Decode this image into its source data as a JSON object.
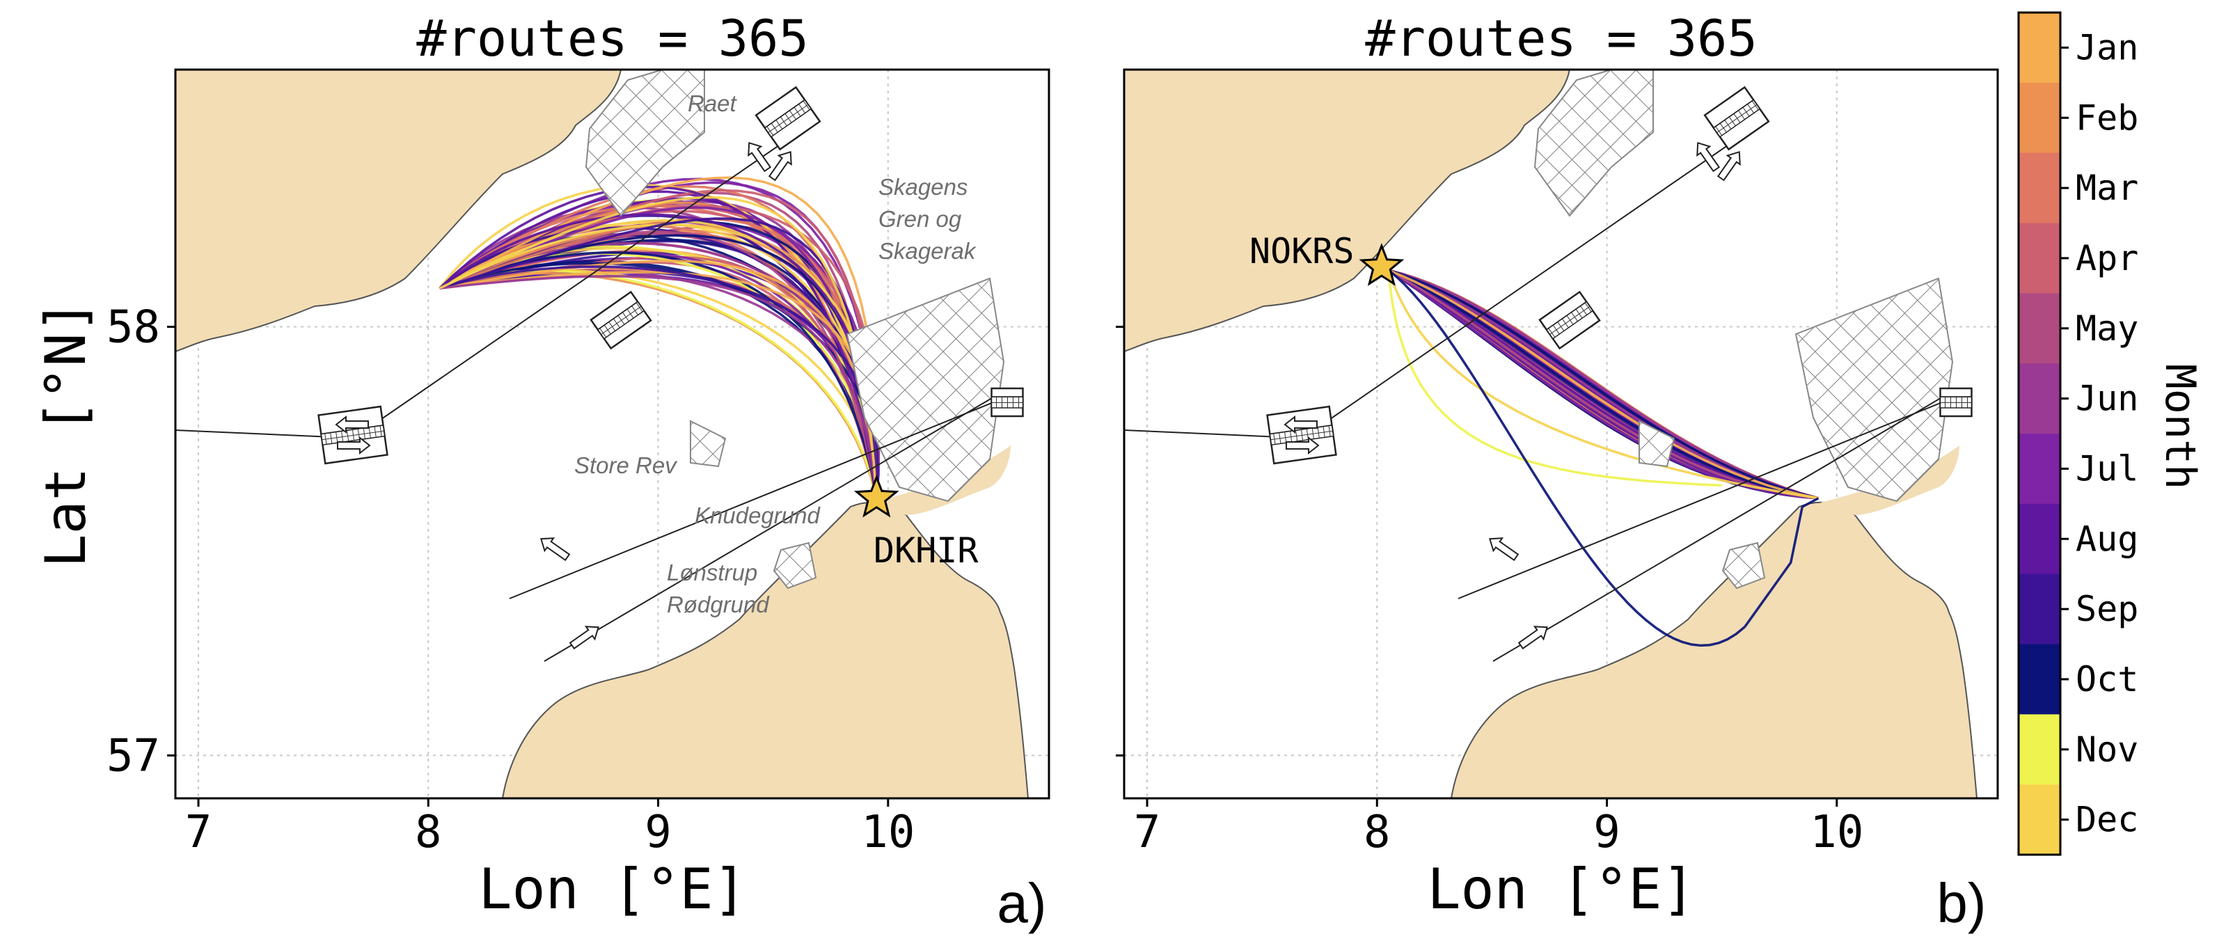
{
  "panels": [
    {
      "id": "a",
      "title": "#routes = 365",
      "panel_label": "a)",
      "port": "DKHIR",
      "port_lonlat": [
        9.95,
        57.6
      ],
      "place_labels": [
        "Raet",
        "Skagens",
        "Gren og",
        "Skagerak",
        "Store Rev",
        "Knudegrund",
        "Lønstrup",
        "Rødgrund"
      ]
    },
    {
      "id": "b",
      "title": "#routes = 365",
      "panel_label": "b)",
      "port": "NOKRS",
      "port_lonlat": [
        8.02,
        58.14
      ],
      "place_labels": []
    }
  ],
  "axes": {
    "xlabel": "Lon [°E]",
    "ylabel": "Lat [°N]",
    "xticks": [
      "7",
      "8",
      "9",
      "10"
    ],
    "yticks": [
      "58",
      "57"
    ],
    "xlim": [
      6.9,
      10.7
    ],
    "ylim": [
      56.9,
      58.6
    ],
    "grid": true
  },
  "colorbar": {
    "label": "Month",
    "months": [
      "Jan",
      "Feb",
      "Mar",
      "Apr",
      "May",
      "Jun",
      "Jul",
      "Aug",
      "Sep",
      "Oct",
      "Nov",
      "Dec"
    ],
    "colors": [
      "#f5ad50",
      "#ec9152",
      "#e07762",
      "#cc6070",
      "#b04b82",
      "#9a3a94",
      "#7f24a4",
      "#5f17a0",
      "#3d1396",
      "#0b1378",
      "#eef350",
      "#f6d24e"
    ]
  },
  "chart_data": {
    "type": "map",
    "xlabel": "Lon [°E]",
    "ylabel": "Lat [°N]",
    "xlim": [
      6.9,
      10.7
    ],
    "ylim": [
      56.9,
      58.6
    ],
    "series": [
      {
        "panel": "a",
        "routes": 365,
        "port": "DKHIR"
      },
      {
        "panel": "b",
        "routes": 365,
        "port": "NOKRS"
      }
    ]
  }
}
